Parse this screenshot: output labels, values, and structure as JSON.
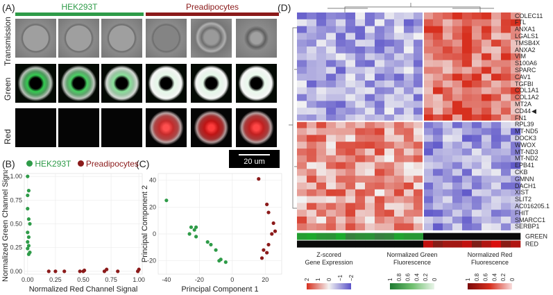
{
  "panels": {
    "A": "(A)",
    "B": "(B)",
    "C": "(C)",
    "D": "(D)"
  },
  "groups": {
    "hek": "HEK293T",
    "pre": "Preadipocytes"
  },
  "rows": [
    "Transmission",
    "Green",
    "Red"
  ],
  "scalebar": "20 um",
  "colors": {
    "hek": "#2e9b48",
    "pre": "#8b1a1a",
    "heat_low": "#5a52c8",
    "heat_mid": "#f2f2f2",
    "heat_high": "#d7301f"
  },
  "chart_data": [
    {
      "type": "scatter",
      "title": "",
      "xlabel": "Normalized Red Channel Signal",
      "ylabel": "Normalized Green Channel Signal",
      "xlim": [
        -0.03,
        1.03
      ],
      "ylim": [
        -0.03,
        1.03
      ],
      "xticks": [
        "0.00",
        "0.25",
        "0.50",
        "0.75",
        "1.00"
      ],
      "yticks": [
        "0.00",
        "0.25",
        "0.50",
        "0.75",
        "1.00"
      ],
      "legend": [
        "HEK293T",
        "Preadipocytes"
      ],
      "series": [
        {
          "name": "HEK293T",
          "color": "#2e9b48",
          "points": [
            [
              0.0,
              1.0
            ],
            [
              0.01,
              0.85
            ],
            [
              0.0,
              0.8
            ],
            [
              0.0,
              0.66
            ],
            [
              0.01,
              0.55
            ],
            [
              0.02,
              0.5
            ],
            [
              0.0,
              0.41
            ],
            [
              0.01,
              0.36
            ],
            [
              0.0,
              0.31
            ],
            [
              0.01,
              0.27
            ],
            [
              0.0,
              0.24
            ],
            [
              0.02,
              0.2
            ],
            [
              0.01,
              0.18
            ]
          ]
        },
        {
          "name": "Preadipocytes",
          "color": "#8b1a1a",
          "points": [
            [
              0.19,
              0.0
            ],
            [
              0.25,
              0.0
            ],
            [
              0.33,
              0.0
            ],
            [
              0.47,
              0.0
            ],
            [
              0.5,
              0.0
            ],
            [
              0.51,
              0.01
            ],
            [
              0.69,
              0.0
            ],
            [
              0.71,
              0.02
            ],
            [
              0.81,
              0.0
            ],
            [
              0.99,
              0.0
            ],
            [
              1.0,
              0.02
            ]
          ]
        }
      ]
    },
    {
      "type": "scatter",
      "title": "",
      "xlabel": "Principal Component 1",
      "ylabel": "Principal Component 2",
      "xlim": [
        -45,
        30
      ],
      "ylim": [
        -30,
        45
      ],
      "xticks": [
        "-40",
        "-20",
        "0",
        "20"
      ],
      "yticks": [
        "-20",
        "0",
        "20",
        "40"
      ],
      "series": [
        {
          "name": "HEK293T",
          "color": "#2e9b48",
          "points": [
            [
              -40,
              25
            ],
            [
              -25,
              5
            ],
            [
              -23,
              3
            ],
            [
              -22,
              5
            ],
            [
              -26,
              0
            ],
            [
              -22,
              -2
            ],
            [
              -15,
              -6
            ],
            [
              -13,
              -8
            ],
            [
              -10,
              -12
            ],
            [
              -7,
              -19
            ],
            [
              -8,
              -20
            ],
            [
              -4,
              -21
            ]
          ]
        },
        {
          "name": "Preadipocytes",
          "color": "#8b1a1a",
          "points": [
            [
              16,
              41
            ],
            [
              21,
              22
            ],
            [
              22,
              16
            ],
            [
              25,
              8
            ],
            [
              26,
              2
            ],
            [
              24,
              0
            ],
            [
              22,
              -8
            ],
            [
              19,
              -12
            ],
            [
              21,
              -14
            ],
            [
              18,
              -18
            ]
          ]
        }
      ]
    }
  ],
  "heatmap": {
    "genes": [
      "COLEC11",
      "FTL",
      "ANXA1",
      "LGALS1",
      "TMSB4X",
      "ANXA2",
      "VIM",
      "S100A6",
      "SPARC",
      "CAV1",
      "TGFBI",
      "COL1A1",
      "COL1A2",
      "MT2A",
      "CD44",
      "FN1",
      "RPL39",
      "MT-ND5",
      "DOCK3",
      "WWOX",
      "MT-ND3",
      "MT-ND2",
      "EPB41",
      "CKB",
      "GMNN",
      "DACH1",
      "XIST",
      "SLIT2",
      "AC016205.1",
      "FHIT",
      "SMARCC1",
      "SERBP1"
    ],
    "marked_gene": "CD44",
    "annot_labels": [
      "GREEN",
      "RED"
    ],
    "legend_titles": [
      [
        "Z-scored",
        "Gene Expression"
      ],
      [
        "Normalized Green",
        "Fluorescence"
      ],
      [
        "Normalized Red",
        "Fluorescence"
      ]
    ],
    "zscore_ticks": [
      "2",
      "1",
      "0",
      "−1",
      "−2"
    ],
    "green_ticks": [
      "1",
      "0.8",
      "0.6",
      "0.4",
      "0.2",
      "0"
    ],
    "red_ticks": [
      "1",
      "0.8",
      "0.6",
      "0.4",
      "0.2",
      "0"
    ]
  }
}
